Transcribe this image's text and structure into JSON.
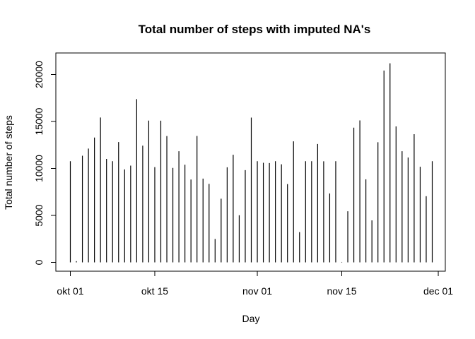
{
  "chart_data": {
    "type": "bar",
    "style": "histogram-lines",
    "title": "Total number of steps with imputed NA's",
    "xlabel": "Day",
    "ylabel": "Total number of steps",
    "x_start": "2012-10-01",
    "xlim": [
      "2012-10-01",
      "2012-11-30"
    ],
    "ylim": [
      0,
      21194
    ],
    "grid": false,
    "x_ticks": [
      {
        "date": "2012-10-01",
        "label": "okt 01"
      },
      {
        "date": "2012-10-15",
        "label": "okt 15"
      },
      {
        "date": "2012-11-01",
        "label": "nov 01"
      },
      {
        "date": "2012-11-15",
        "label": "nov 15"
      },
      {
        "date": "2012-12-01",
        "label": "dec 01"
      }
    ],
    "y_ticks": [
      0,
      5000,
      10000,
      15000,
      20000
    ],
    "x": [
      "2012-10-01",
      "2012-10-02",
      "2012-10-03",
      "2012-10-04",
      "2012-10-05",
      "2012-10-06",
      "2012-10-07",
      "2012-10-08",
      "2012-10-09",
      "2012-10-10",
      "2012-10-11",
      "2012-10-12",
      "2012-10-13",
      "2012-10-14",
      "2012-10-15",
      "2012-10-16",
      "2012-10-17",
      "2012-10-18",
      "2012-10-19",
      "2012-10-20",
      "2012-10-21",
      "2012-10-22",
      "2012-10-23",
      "2012-10-24",
      "2012-10-25",
      "2012-10-26",
      "2012-10-27",
      "2012-10-28",
      "2012-10-29",
      "2012-10-30",
      "2012-10-31",
      "2012-11-01",
      "2012-11-02",
      "2012-11-03",
      "2012-11-04",
      "2012-11-05",
      "2012-11-06",
      "2012-11-07",
      "2012-11-08",
      "2012-11-09",
      "2012-11-10",
      "2012-11-11",
      "2012-11-12",
      "2012-11-13",
      "2012-11-14",
      "2012-11-15",
      "2012-11-16",
      "2012-11-17",
      "2012-11-18",
      "2012-11-19",
      "2012-11-20",
      "2012-11-21",
      "2012-11-22",
      "2012-11-23",
      "2012-11-24",
      "2012-11-25",
      "2012-11-26",
      "2012-11-27",
      "2012-11-28",
      "2012-11-29",
      "2012-11-30"
    ],
    "values": [
      10766,
      126,
      11352,
      12116,
      13294,
      15420,
      11015,
      10766,
      12811,
      9900,
      10304,
      17382,
      12426,
      15098,
      10139,
      15084,
      13452,
      10056,
      11829,
      10395,
      8821,
      13460,
      8918,
      8355,
      2492,
      6778,
      10119,
      11458,
      5018,
      9819,
      15414,
      10766,
      10600,
      10571,
      10766,
      10439,
      8334,
      12883,
      3219,
      10766,
      10766,
      12608,
      10765,
      7336,
      10766,
      41,
      5441,
      14339,
      15110,
      8841,
      4472,
      12787,
      20427,
      21194,
      14478,
      11834,
      11162,
      13646,
      10183,
      7047,
      10766
    ]
  }
}
